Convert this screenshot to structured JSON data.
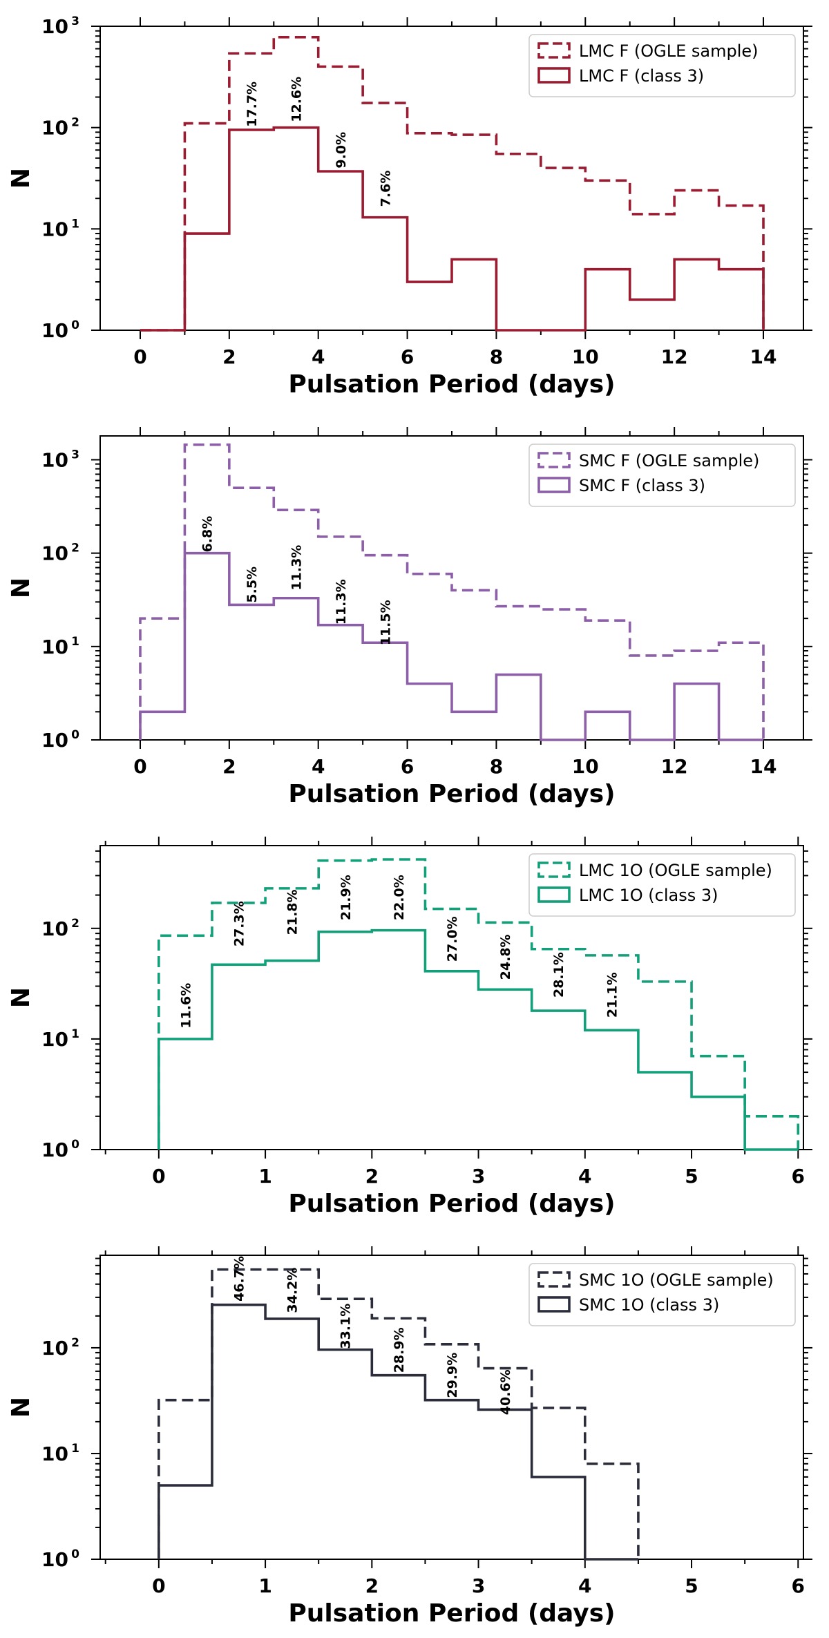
{
  "colors": {
    "lmc_f": "#9b1b30",
    "smc_f": "#8c5fa8",
    "lmc_1o": "#12a07a",
    "smc_1o": "#2b2d3b"
  },
  "chart_data": [
    {
      "type": "histogram",
      "yscale": "log",
      "xlabel": "Pulsation Period (days)",
      "ylabel": "N",
      "xlim": [
        -0.9,
        14.9
      ],
      "ylim": [
        1,
        1000
      ],
      "xticks": [
        0,
        2,
        4,
        6,
        8,
        10,
        12,
        14
      ],
      "yticks": [
        {
          "base": "10",
          "exp": "0"
        },
        {
          "base": "10",
          "exp": "1"
        },
        {
          "base": "10",
          "exp": "2"
        },
        {
          "base": "10",
          "exp": "3"
        }
      ],
      "legend_position": "top-right",
      "bin_edges": [
        0,
        1,
        2,
        3,
        4,
        5,
        6,
        7,
        8,
        9,
        10,
        11,
        12,
        13,
        14
      ],
      "series": [
        {
          "name": "LMC F (OGLE sample)",
          "style": "dashed",
          "color": "#9b1b30",
          "values": [
            1,
            110,
            540,
            780,
            400,
            175,
            88,
            85,
            55,
            40,
            30,
            14,
            24,
            17
          ]
        },
        {
          "name": "LMC F (class 3)",
          "style": "solid",
          "color": "#9b1b30",
          "values": [
            1,
            9,
            95,
            100,
            37,
            13,
            3,
            5,
            1,
            1,
            4,
            2,
            5,
            4
          ]
        }
      ],
      "annotations": [
        {
          "text": "17.7%",
          "x": 2.5,
          "y": 170
        },
        {
          "text": "12.6%",
          "x": 3.5,
          "y": 190
        },
        {
          "text": "9.0%",
          "x": 4.5,
          "y": 60
        },
        {
          "text": "7.6%",
          "x": 5.5,
          "y": 25
        }
      ]
    },
    {
      "type": "histogram",
      "yscale": "log",
      "xlabel": "Pulsation Period (days)",
      "ylabel": "N",
      "xlim": [
        -0.9,
        14.9
      ],
      "ylim": [
        1,
        1800
      ],
      "xticks": [
        0,
        2,
        4,
        6,
        8,
        10,
        12,
        14
      ],
      "yticks": [
        {
          "base": "10",
          "exp": "0"
        },
        {
          "base": "10",
          "exp": "1"
        },
        {
          "base": "10",
          "exp": "2"
        },
        {
          "base": "10",
          "exp": "3"
        }
      ],
      "legend_position": "top-right",
      "bin_edges": [
        0,
        1,
        2,
        3,
        4,
        5,
        6,
        7,
        8,
        9,
        10,
        11,
        12,
        13,
        14
      ],
      "series": [
        {
          "name": "SMC F (OGLE sample)",
          "style": "dashed",
          "color": "#8c5fa8",
          "values": [
            20,
            1450,
            500,
            290,
            150,
            95,
            60,
            40,
            27,
            25,
            19,
            8,
            9,
            11
          ]
        },
        {
          "name": "SMC F (class 3)",
          "style": "solid",
          "color": "#8c5fa8",
          "values": [
            2,
            100,
            28,
            33,
            17,
            11,
            4,
            2,
            5,
            1,
            2,
            1,
            4,
            1
          ]
        }
      ],
      "annotations": [
        {
          "text": "6.8%",
          "x": 1.5,
          "y": 160
        },
        {
          "text": "5.5%",
          "x": 2.5,
          "y": 46
        },
        {
          "text": "11.3%",
          "x": 3.5,
          "y": 70
        },
        {
          "text": "11.3%",
          "x": 4.5,
          "y": 30
        },
        {
          "text": "11.5%",
          "x": 5.5,
          "y": 18
        }
      ]
    },
    {
      "type": "histogram",
      "yscale": "log",
      "xlabel": "Pulsation Period (days)",
      "ylabel": "N",
      "xlim": [
        -0.55,
        6.05
      ],
      "ylim": [
        1,
        560
      ],
      "xticks": [
        0,
        1,
        2,
        3,
        4,
        5,
        6
      ],
      "yticks": [
        {
          "base": "10",
          "exp": "0"
        },
        {
          "base": "10",
          "exp": "1"
        },
        {
          "base": "10",
          "exp": "2"
        }
      ],
      "legend_position": "top-right",
      "bin_edges": [
        0,
        0.5,
        1,
        1.5,
        2,
        2.5,
        3,
        3.5,
        4,
        4.5,
        5,
        5.5,
        6
      ],
      "series": [
        {
          "name": "LMC 1O (OGLE sample)",
          "style": "dashed",
          "color": "#12a07a",
          "values": [
            86,
            170,
            230,
            410,
            420,
            150,
            113,
            65,
            57,
            33,
            7,
            2
          ]
        },
        {
          "name": "LMC 1O (class 3)",
          "style": "solid",
          "color": "#12a07a",
          "values": [
            10,
            47,
            51,
            93,
            96,
            41,
            28,
            18,
            12,
            5,
            3,
            1
          ]
        }
      ],
      "annotations": [
        {
          "text": "11.6%",
          "x": 0.25,
          "y": 20
        },
        {
          "text": "27.3%",
          "x": 0.75,
          "y": 110
        },
        {
          "text": "21.8%",
          "x": 1.25,
          "y": 140
        },
        {
          "text": "21.9%",
          "x": 1.75,
          "y": 190
        },
        {
          "text": "22.0%",
          "x": 2.25,
          "y": 190
        },
        {
          "text": "27.0%",
          "x": 2.75,
          "y": 80
        },
        {
          "text": "24.8%",
          "x": 3.25,
          "y": 55
        },
        {
          "text": "28.1%",
          "x": 3.75,
          "y": 38
        },
        {
          "text": "21.1%",
          "x": 4.25,
          "y": 25
        }
      ]
    },
    {
      "type": "histogram",
      "yscale": "log",
      "xlabel": "Pulsation Period (days)",
      "ylabel": "N",
      "xlim": [
        -0.55,
        6.05
      ],
      "ylim": [
        1,
        750
      ],
      "xticks": [
        0,
        1,
        2,
        3,
        4,
        5,
        6
      ],
      "yticks": [
        {
          "base": "10",
          "exp": "0"
        },
        {
          "base": "10",
          "exp": "1"
        },
        {
          "base": "10",
          "exp": "2"
        }
      ],
      "legend_position": "top-right",
      "bin_edges": [
        0,
        0.5,
        1,
        1.5,
        2,
        2.5,
        3,
        3.5,
        4,
        4.5
      ],
      "series": [
        {
          "name": "SMC 1O (OGLE sample)",
          "style": "dashed",
          "color": "#2b2d3b",
          "values": [
            32,
            550,
            550,
            290,
            190,
            108,
            64,
            27,
            8
          ]
        },
        {
          "name": "SMC 1O (class 3)",
          "style": "solid",
          "color": "#2b2d3b",
          "values": [
            5,
            255,
            188,
            96,
            55,
            32,
            26,
            6,
            1
          ]
        }
      ],
      "annotations": [
        {
          "text": "46.7%",
          "x": 0.75,
          "y": 450
        },
        {
          "text": "34.2%",
          "x": 1.25,
          "y": 350
        },
        {
          "text": "33.1%",
          "x": 1.75,
          "y": 160
        },
        {
          "text": "28.9%",
          "x": 2.25,
          "y": 95
        },
        {
          "text": "29.9%",
          "x": 2.75,
          "y": 55
        },
        {
          "text": "40.6%",
          "x": 3.25,
          "y": 38
        }
      ]
    }
  ]
}
